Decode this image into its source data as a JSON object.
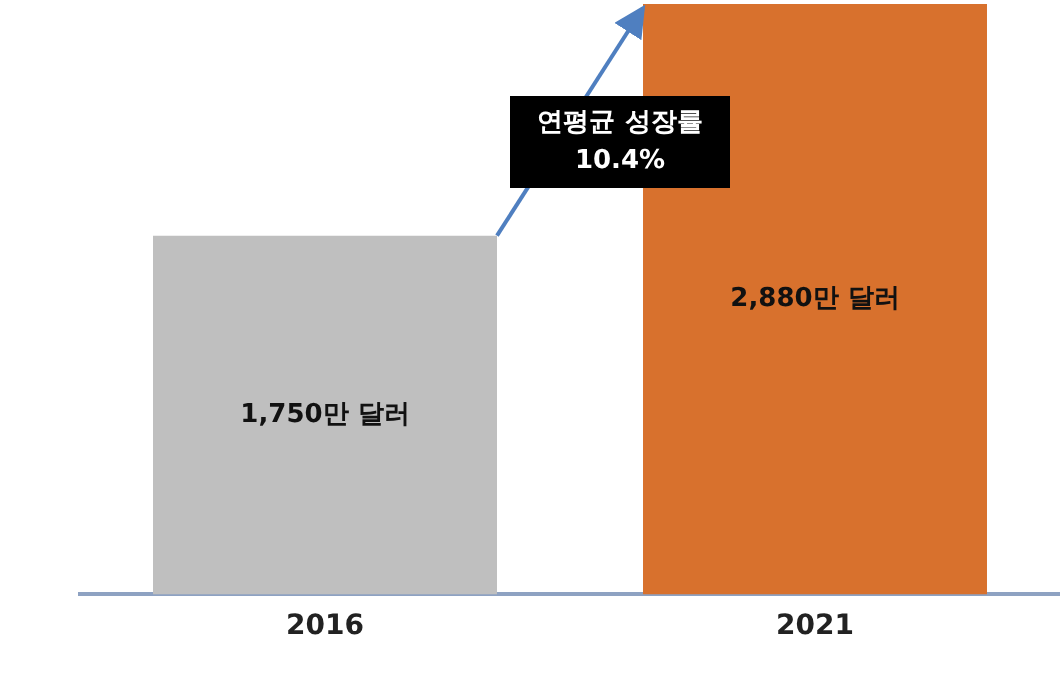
{
  "chart_data": {
    "type": "bar",
    "categories": [
      "2016",
      "2021"
    ],
    "values": [
      1750,
      2880
    ],
    "colors": [
      "#bfbfbf",
      "#d8712d"
    ],
    "value_labels": [
      "1,750만 달러",
      "2,880만 달러"
    ],
    "annotations": [
      "연평균 성장률\n10.4%"
    ],
    "legend": false,
    "grid": false
  }
}
